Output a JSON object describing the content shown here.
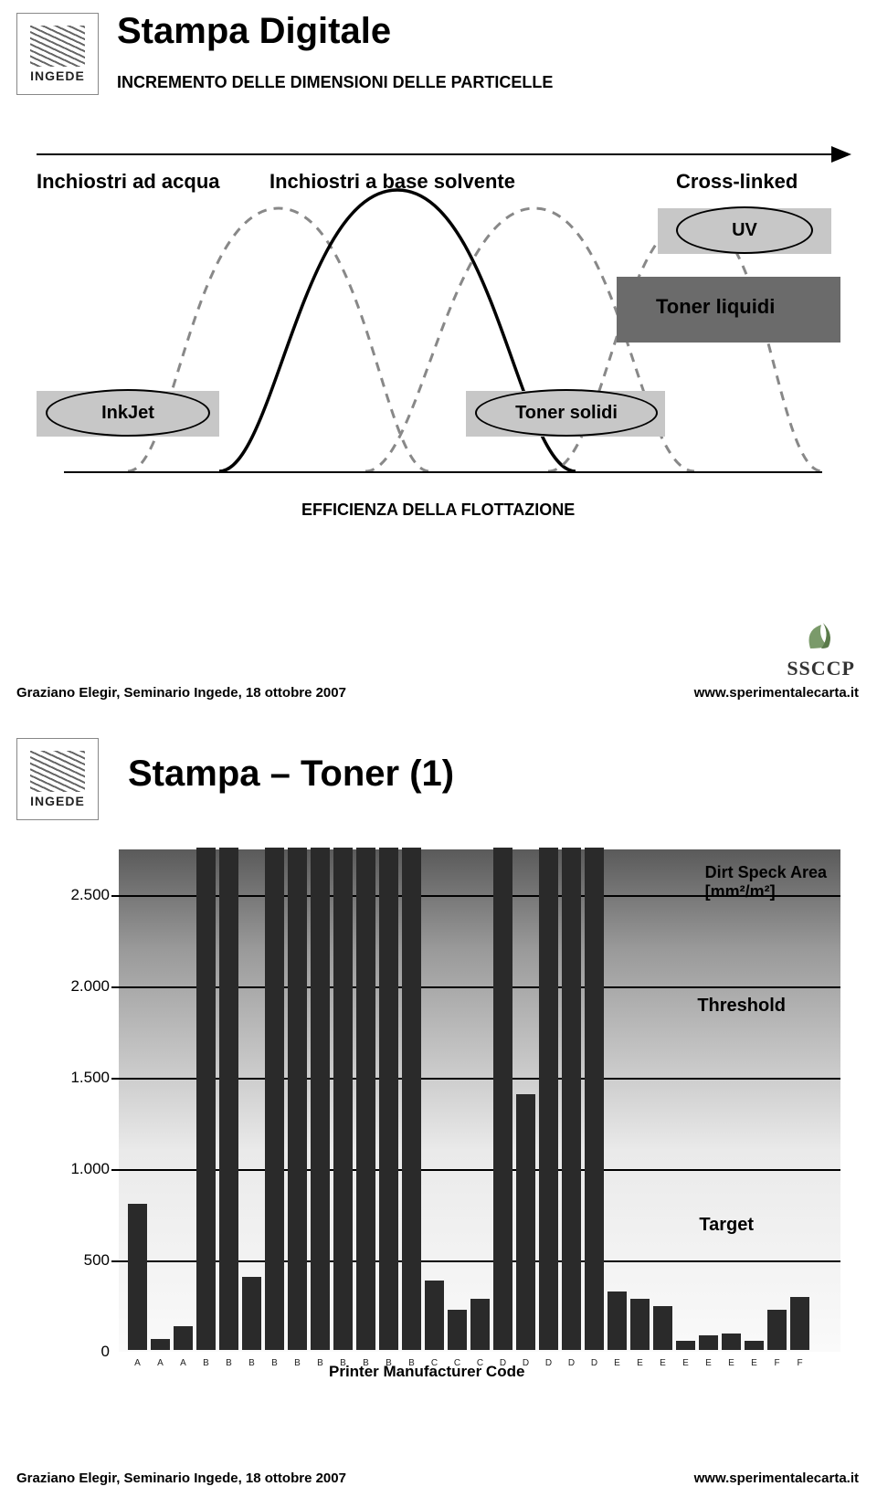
{
  "logo_text": "INGEDE",
  "slide1": {
    "title": "Stampa Digitale",
    "subtitle": "INCREMENTO DELLE DIMENSIONI DELLE PARTICELLE",
    "labels": {
      "water_inks": "Inchiostri ad acqua",
      "solvent_inks": "Inchiostri a base solvente",
      "cross_linked": "Cross-linked",
      "uv": "UV",
      "liquid_toner": "Toner liquidi",
      "inkjet": "InkJet",
      "solid_toner": "Toner solidi",
      "efficiency": "EFFICIENZA DELLA FLOTTAZIONE"
    },
    "footer_left": "Graziano Elegir, Seminario Ingede, 18 ottobre 2007",
    "footer_right": "www.sperimentalecarta.it",
    "ssccp": "SSCCP"
  },
  "slide2": {
    "title": "Stampa – Toner (1)",
    "footer_left": "Graziano Elegir, Seminario Ingede, 18 ottobre 2007",
    "footer_right": "www.sperimentalecarta.it",
    "xlabel": "Printer Manufacturer Code",
    "legend": {
      "dirt": "Dirt Speck Area\n[mm²/m²]",
      "threshold": "Threshold",
      "target": "Target"
    },
    "chart": {
      "type": "bar",
      "ylim": [
        0,
        2750
      ],
      "yticks": [
        0,
        500,
        1000,
        1500,
        2000,
        2500
      ],
      "threshold": 2000,
      "target": 600,
      "bar_color": "#2a2a2a",
      "grad_colors": [
        "#5a5a5a",
        "#9a9a9a",
        "#eaeaea",
        "#fafafa"
      ],
      "categories": [
        "A",
        "A",
        "A",
        "B",
        "B",
        "B",
        "B",
        "B",
        "B",
        "B",
        "B",
        "B",
        "B",
        "C",
        "C",
        "C",
        "D",
        "D",
        "D",
        "D",
        "D",
        "E",
        "E",
        "E",
        "E",
        "E",
        "E",
        "E",
        "F",
        "F"
      ],
      "values": [
        800,
        60,
        130,
        2750,
        2750,
        400,
        2750,
        2750,
        2750,
        2750,
        2750,
        2750,
        2750,
        380,
        220,
        280,
        2750,
        1400,
        2750,
        2750,
        2750,
        320,
        280,
        240,
        50,
        80,
        90,
        50,
        220,
        290
      ]
    }
  }
}
